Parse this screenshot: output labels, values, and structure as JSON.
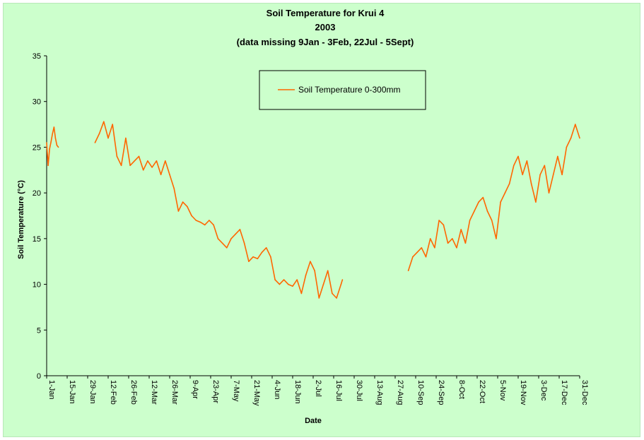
{
  "chart_data": {
    "type": "line",
    "title": "Soil Temperature for Krui 4",
    "subtitle": "2003",
    "note": "(data missing 9Jan - 3Feb, 22Jul - 5Sept)",
    "xlabel": "Date",
    "ylabel": "Soil Temperature (°C)",
    "ylim": [
      0,
      35
    ],
    "y_ticks": [
      "0",
      "5",
      "10",
      "15",
      "20",
      "25",
      "30",
      "35"
    ],
    "x_tick_labels": [
      "1-Jan",
      "15-Jan",
      "29-Jan",
      "12-Feb",
      "26-Feb",
      "12-Mar",
      "26-Mar",
      "9-Apr",
      "23-Apr",
      "7-May",
      "21-May",
      "4-Jun",
      "18-Jun",
      "2-Jul",
      "16-Jul",
      "30-Jul",
      "13-Aug",
      "27-Aug",
      "10-Sep",
      "24-Sep",
      "8-Oct",
      "22-Oct",
      "5-Nov",
      "19-Nov",
      "3-Dec",
      "17-Dec",
      "31-Dec"
    ],
    "grid": false,
    "legend_position": "top-center",
    "series": [
      {
        "name": "Soil Temperature  0-300mm",
        "color": "#ff6600",
        "segments": [
          {
            "x": [
              "2003-01-01",
              "2003-01-02",
              "2003-01-03",
              "2003-01-04",
              "2003-01-05",
              "2003-01-06",
              "2003-01-07",
              "2003-01-08",
              "2003-01-09"
            ],
            "y": [
              25.5,
              23.0,
              24.8,
              25.6,
              26.5,
              27.2,
              26.0,
              25.2,
              25.0
            ]
          },
          {
            "x": [
              "2003-02-03",
              "2003-02-06",
              "2003-02-09",
              "2003-02-12",
              "2003-02-15",
              "2003-02-18",
              "2003-02-21",
              "2003-02-24",
              "2003-02-27",
              "2003-03-02",
              "2003-03-05",
              "2003-03-08",
              "2003-03-11",
              "2003-03-14",
              "2003-03-17",
              "2003-03-20",
              "2003-03-23",
              "2003-03-26",
              "2003-03-29",
              "2003-04-01",
              "2003-04-04",
              "2003-04-07",
              "2003-04-10",
              "2003-04-13",
              "2003-04-16",
              "2003-04-19",
              "2003-04-22",
              "2003-04-25",
              "2003-04-28",
              "2003-05-01",
              "2003-05-04",
              "2003-05-07",
              "2003-05-10",
              "2003-05-13",
              "2003-05-16",
              "2003-05-19",
              "2003-05-22",
              "2003-05-25",
              "2003-05-28",
              "2003-05-31",
              "2003-06-03",
              "2003-06-06",
              "2003-06-09",
              "2003-06-12",
              "2003-06-15",
              "2003-06-18",
              "2003-06-21",
              "2003-06-24",
              "2003-06-27",
              "2003-06-30",
              "2003-07-03",
              "2003-07-06",
              "2003-07-09",
              "2003-07-12",
              "2003-07-15",
              "2003-07-18",
              "2003-07-21",
              "2003-07-22"
            ],
            "y": [
              25.5,
              26.5,
              27.8,
              26.0,
              27.5,
              24.0,
              23.0,
              26.0,
              23.0,
              23.5,
              24.0,
              22.5,
              23.5,
              22.8,
              23.5,
              22.0,
              23.5,
              22.0,
              20.5,
              18.0,
              19.0,
              18.5,
              17.5,
              17.0,
              16.8,
              16.5,
              17.0,
              16.5,
              15.0,
              14.5,
              14.0,
              15.0,
              15.5,
              16.0,
              14.5,
              12.5,
              13.0,
              12.8,
              13.5,
              14.0,
              13.0,
              10.5,
              10.0,
              10.5,
              10.0,
              9.8,
              10.5,
              9.0,
              11.0,
              12.5,
              11.5,
              8.5,
              10.0,
              11.5,
              9.0,
              8.5,
              10.0,
              10.5
            ]
          },
          {
            "x": [
              "2003-09-05",
              "2003-09-08",
              "2003-09-11",
              "2003-09-14",
              "2003-09-17",
              "2003-09-20",
              "2003-09-23",
              "2003-09-26",
              "2003-09-29",
              "2003-10-02",
              "2003-10-05",
              "2003-10-08",
              "2003-10-11",
              "2003-10-14",
              "2003-10-17",
              "2003-10-20",
              "2003-10-23",
              "2003-10-26",
              "2003-10-29",
              "2003-11-01",
              "2003-11-04",
              "2003-11-07",
              "2003-11-10",
              "2003-11-13",
              "2003-11-16",
              "2003-11-19",
              "2003-11-22",
              "2003-11-25",
              "2003-11-28",
              "2003-12-01",
              "2003-12-04",
              "2003-12-07",
              "2003-12-10",
              "2003-12-13",
              "2003-12-16",
              "2003-12-19",
              "2003-12-22",
              "2003-12-25",
              "2003-12-28",
              "2003-12-31"
            ],
            "y": [
              11.5,
              13.0,
              13.5,
              14.0,
              13.0,
              15.0,
              14.0,
              17.0,
              16.5,
              14.5,
              15.0,
              14.0,
              16.0,
              14.5,
              17.0,
              18.0,
              19.0,
              19.5,
              18.0,
              17.0,
              15.0,
              19.0,
              20.0,
              21.0,
              23.0,
              24.0,
              22.0,
              23.5,
              21.0,
              19.0,
              22.0,
              23.0,
              20.0,
              22.0,
              24.0,
              22.0,
              25.0,
              26.0,
              27.5,
              26.0
            ]
          }
        ]
      }
    ]
  }
}
